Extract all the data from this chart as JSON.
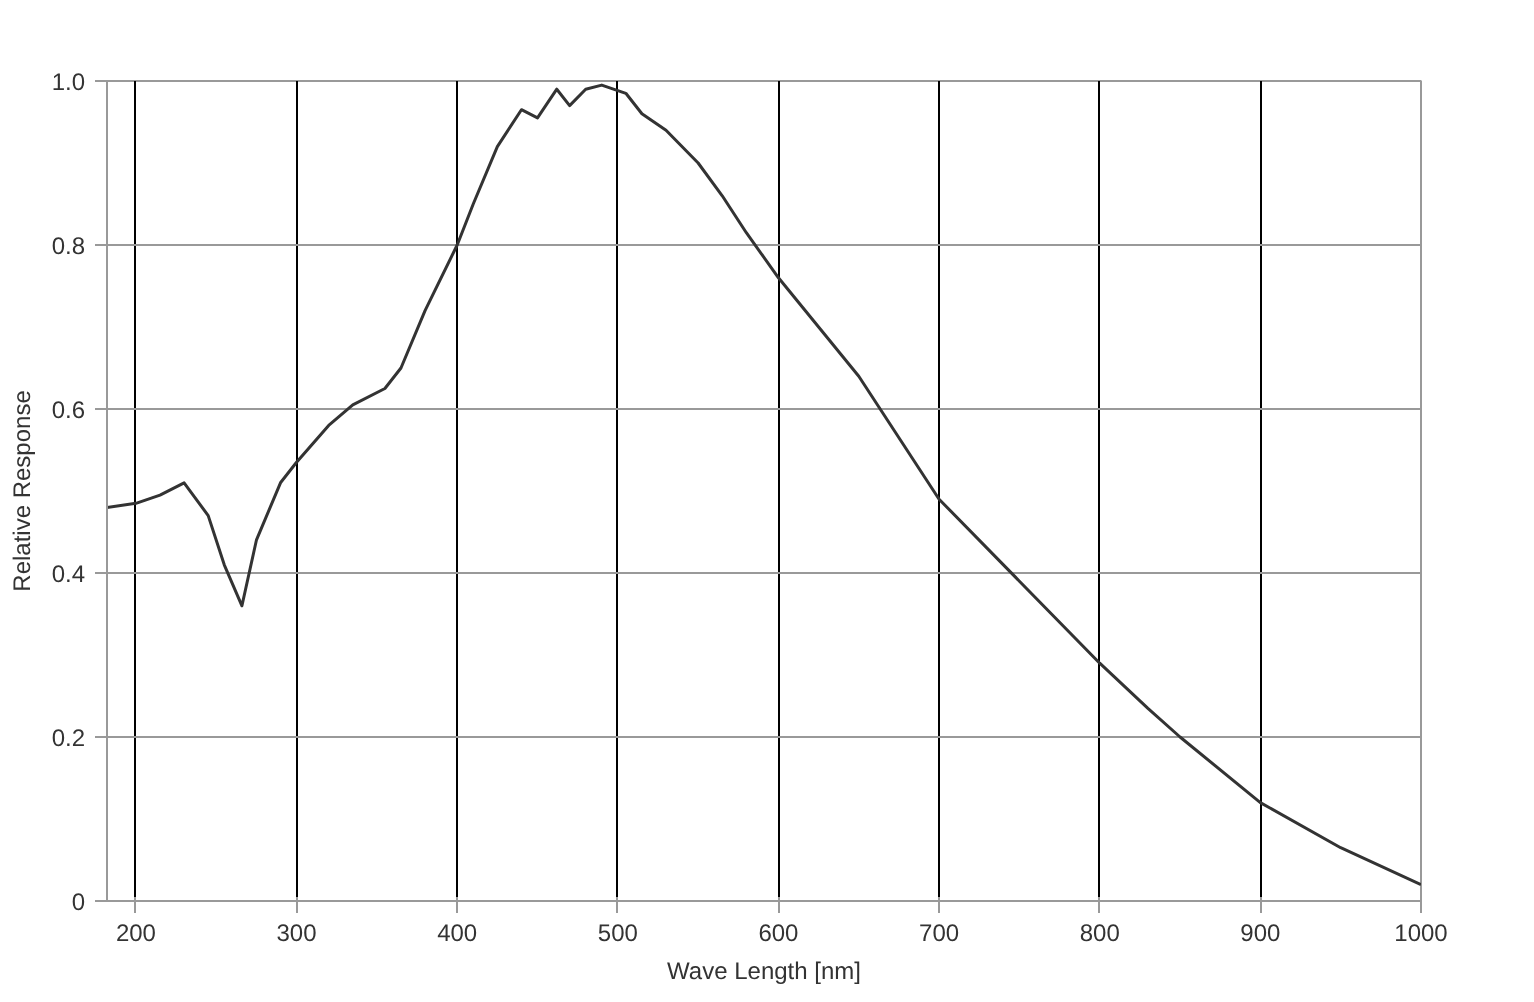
{
  "chart_data": {
    "type": "line",
    "xlabel": "Wave Length [nm]",
    "ylabel": "Relative Response",
    "xlim": [
      182,
      1000
    ],
    "xticks": [
      200,
      300,
      400,
      500,
      600,
      700,
      800,
      900,
      1000
    ],
    "ylim": [
      0,
      1.0
    ],
    "yticks": [
      {
        "value": 0,
        "label": "0"
      },
      0.2,
      0.4,
      0.6,
      0.8,
      {
        "value": 1.0,
        "label": "1.0"
      }
    ],
    "grid": true,
    "marker": "none",
    "line_style": "solid",
    "series": [
      {
        "color": "#333333",
        "x": [
          182,
          200,
          215,
          230,
          245,
          255,
          266,
          275,
          290,
          300,
          320,
          335,
          355,
          365,
          380,
          400,
          410,
          425,
          440,
          450,
          462,
          470,
          480,
          490,
          505,
          515,
          530,
          550,
          565,
          580,
          600,
          650,
          700,
          750,
          800,
          830,
          850,
          900,
          950,
          1000
        ],
        "values": [
          0.48,
          0.485,
          0.495,
          0.51,
          0.47,
          0.41,
          0.36,
          0.44,
          0.51,
          0.535,
          0.58,
          0.605,
          0.625,
          0.65,
          0.72,
          0.8,
          0.85,
          0.92,
          0.965,
          0.955,
          0.99,
          0.97,
          0.99,
          0.995,
          0.985,
          0.96,
          0.94,
          0.9,
          0.86,
          0.815,
          0.76,
          0.64,
          0.49,
          0.39,
          0.29,
          0.235,
          0.2,
          0.12,
          0.065,
          0.02
        ]
      }
    ]
  }
}
